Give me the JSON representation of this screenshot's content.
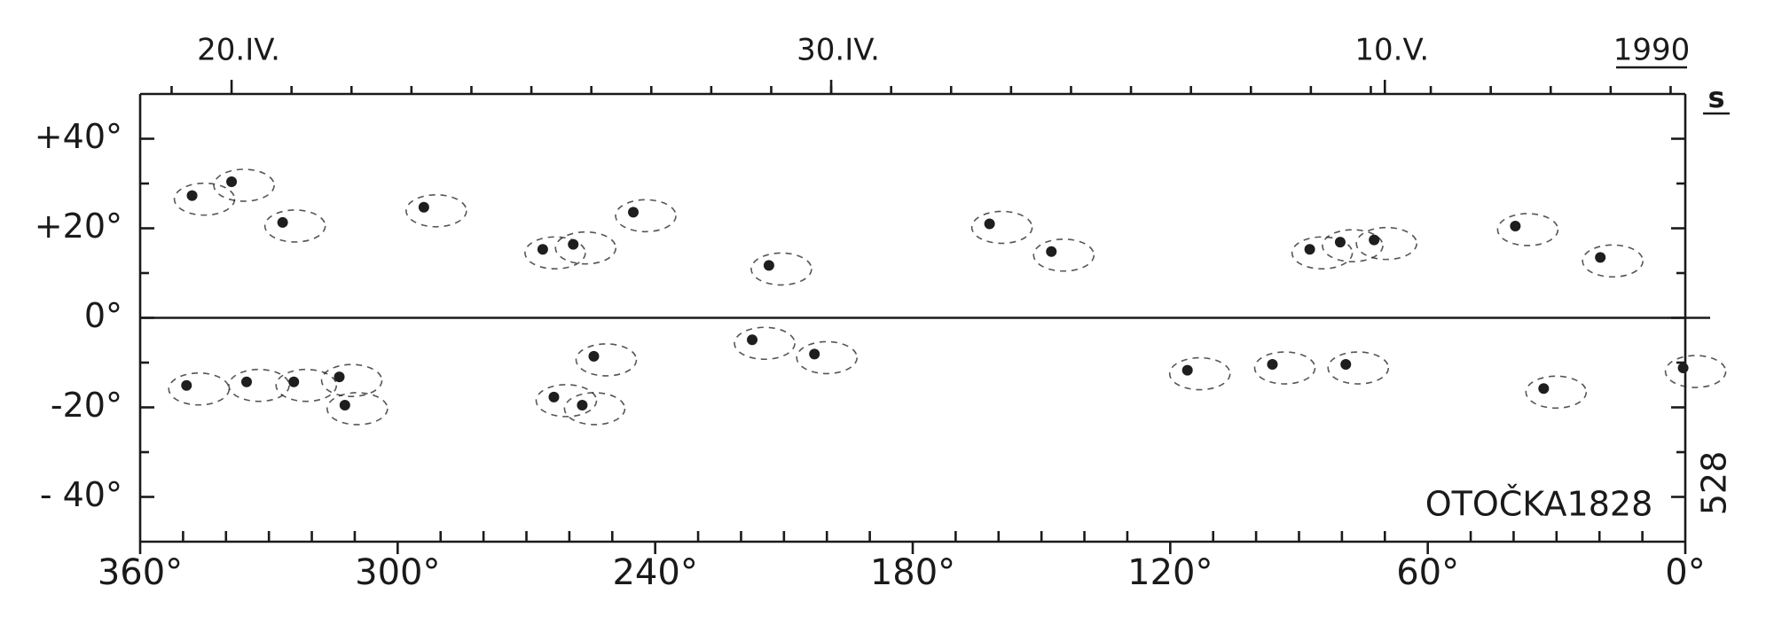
{
  "chart_data": {
    "type": "scatter",
    "title": "OTOČKA1828",
    "side_label": "s",
    "rotation_label": "528",
    "year_label": "1990",
    "color": "#1e1e1e",
    "xlim": [
      360,
      0
    ],
    "ylim": [
      -50,
      50
    ],
    "xticks": [
      {
        "value": 360,
        "label": "360°"
      },
      {
        "value": 300,
        "label": "300°"
      },
      {
        "value": 240,
        "label": "240°"
      },
      {
        "value": 180,
        "label": "180°"
      },
      {
        "value": 120,
        "label": "120°"
      },
      {
        "value": 60,
        "label": "60°"
      },
      {
        "value": 0,
        "label": "0°"
      }
    ],
    "yticks": [
      {
        "value": 40,
        "label": "+40°"
      },
      {
        "value": 20,
        "label": "+20°"
      },
      {
        "value": 0,
        "label": "0°"
      },
      {
        "value": -20,
        "label": "-20°"
      },
      {
        "value": -40,
        "label": "- 40°"
      }
    ],
    "x2ticks": [
      {
        "value": 338.7,
        "label": "20.IV."
      },
      {
        "value": 199,
        "label": "30.IV."
      },
      {
        "value": 70,
        "label": "10.V."
      }
    ],
    "x": [
      347.9,
      338.7,
      326.8,
      293.9,
      266.2,
      259.1,
      245.1,
      213.5,
      162.1,
      147.7,
      87.5,
      80.4,
      72.5,
      39.6,
      19.8,
      349.2,
      335.2,
      324.2,
      313.6,
      312.3,
      263.6,
      257.0,
      254.3,
      217.4,
      202.9,
      116.0,
      96.2,
      79.1,
      33.0,
      0.5
    ],
    "values": [
      27.3,
      30.4,
      21.3,
      24.7,
      15.3,
      16.4,
      23.6,
      11.7,
      21.0,
      14.8,
      15.3,
      16.9,
      17.4,
      20.5,
      13.5,
      -15.1,
      -14.3,
      -14.3,
      -13.2,
      -19.5,
      -17.7,
      -19.5,
      -8.6,
      -4.9,
      -8.1,
      -11.7,
      -10.4,
      -10.4,
      -15.8,
      -11.2
    ]
  }
}
